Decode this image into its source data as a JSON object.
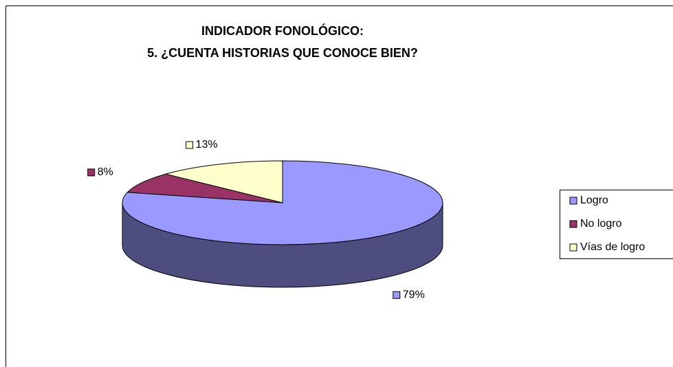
{
  "chart_data": {
    "type": "pie3d",
    "title": [
      "INDICADOR FONOLÓGICO:",
      "5. ¿CUENTA HISTORIAS QUE CONOCE BIEN?"
    ],
    "categories": [
      "Logro",
      "No logro",
      "Vías de logro"
    ],
    "values": [
      79,
      8,
      13
    ],
    "value_labels": [
      "79%",
      "8%",
      "13%"
    ],
    "colors": [
      "#9999ff",
      "#993366",
      "#ffffcc"
    ],
    "legend": "right"
  }
}
